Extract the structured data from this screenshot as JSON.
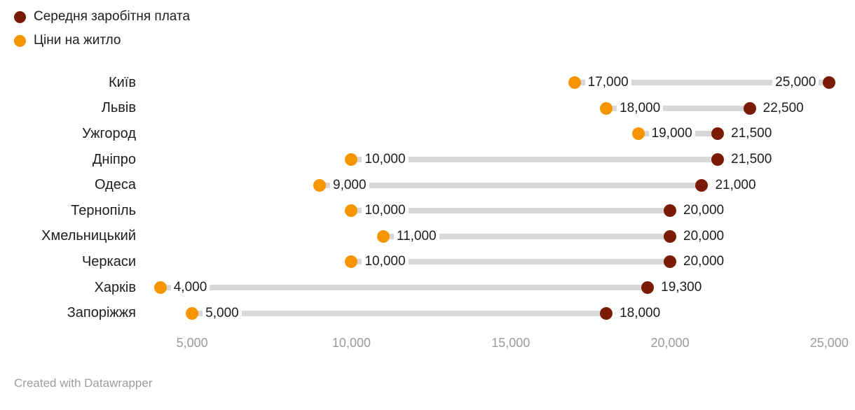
{
  "legend": [
    {
      "label": "Середня заробітня плата",
      "series_key": "salary"
    },
    {
      "label": "Ціни на житло",
      "series_key": "housing"
    }
  ],
  "chart_data": {
    "type": "dumbbell-range",
    "title": "",
    "categories": [
      "Київ",
      "Львів",
      "Ужгород",
      "Дніпро",
      "Одеса",
      "Тернопіль",
      "Хмельницький",
      "Черкаси",
      "Харків",
      "Запоріжжя"
    ],
    "series": [
      {
        "name": "Середня заробітня плата",
        "color": "#7A1C05",
        "values": [
          25000,
          22500,
          21500,
          21500,
          21000,
          20000,
          20000,
          20000,
          19300,
          18000
        ]
      },
      {
        "name": "Ціни на житло",
        "color": "#F79500",
        "values": [
          17000,
          18000,
          19000,
          10000,
          9000,
          10000,
          11000,
          10000,
          4000,
          5000
        ]
      }
    ],
    "x_ticks": [
      5000,
      10000,
      15000,
      20000,
      25000
    ],
    "x_tick_labels": [
      "5,000",
      "10,000",
      "15,000",
      "20,000",
      "25,000"
    ],
    "xlim": [
      3500,
      25500
    ],
    "grid": false,
    "legend_position": "top-left",
    "value_labels_visible": true
  },
  "colors": {
    "salary": "#7A1C05",
    "housing": "#F79500",
    "connector": "#D8D8D8",
    "tick_text": "#9B9B9B",
    "label_text": "#1D1D1D"
  },
  "footer": {
    "credit": "Created with Datawrapper"
  }
}
